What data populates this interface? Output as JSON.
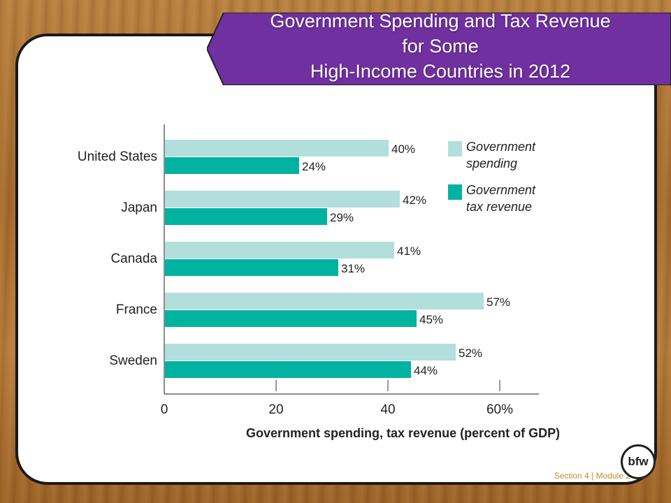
{
  "slide": {
    "title_lines": [
      "Government Spending and Tax Revenue",
      "for Some",
      "High-Income Countries in 2012"
    ],
    "footer": "Section 4 | Module 2",
    "logo_text": "bfw"
  },
  "colors": {
    "banner": "#7030a0",
    "spending": "#b2dfdb",
    "tax": "#00b2a0"
  },
  "chart_data": {
    "type": "bar",
    "orientation": "horizontal",
    "categories": [
      "United States",
      "Japan",
      "Canada",
      "France",
      "Sweden"
    ],
    "series": [
      {
        "name": "Government spending",
        "values": [
          40,
          42,
          41,
          57,
          52
        ],
        "labels": [
          "40%",
          "42%",
          "41%",
          "57%",
          "52%"
        ]
      },
      {
        "name": "Government tax revenue",
        "values": [
          24,
          29,
          31,
          45,
          44
        ],
        "labels": [
          "24%",
          "29%",
          "31%",
          "45%",
          "44%"
        ]
      }
    ],
    "legend": [
      {
        "line1": "Government",
        "line2": "spending"
      },
      {
        "line1": "Government",
        "line2": "tax revenue"
      }
    ],
    "legend_position": "top-right",
    "xlabel": "Government spending, tax revenue (percent of GDP)",
    "xlim": [
      0,
      67
    ],
    "xticks": [
      0,
      20,
      40,
      60
    ],
    "xtick_labels": [
      "0",
      "20",
      "40",
      "60%"
    ],
    "grid": false
  }
}
